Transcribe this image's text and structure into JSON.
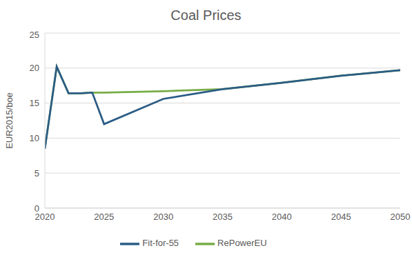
{
  "chart_data": {
    "type": "line",
    "title": "Coal Prices",
    "y_label": "EUR2015/boe",
    "x": [
      2020,
      2021,
      2022,
      2023,
      2024,
      2025,
      2030,
      2035,
      2040,
      2045,
      2050
    ],
    "series": [
      {
        "name": "RePowerEU",
        "color": "#77ac45",
        "values": [
          8.5,
          20.2,
          16.4,
          16.4,
          16.5,
          16.5,
          16.7,
          17.0,
          17.9,
          18.9,
          19.7
        ]
      },
      {
        "name": "Fit-for-55",
        "color": "#2b5c85",
        "values": [
          8.5,
          20.2,
          16.4,
          16.4,
          16.5,
          12.0,
          15.6,
          17.0,
          17.9,
          18.9,
          19.7
        ]
      }
    ],
    "xlim": [
      2020,
      2050
    ],
    "xticks": [
      2020,
      2025,
      2030,
      2035,
      2040,
      2045,
      2050
    ],
    "ylim": [
      0,
      25
    ],
    "yticks": [
      0,
      5,
      10,
      15,
      20,
      25
    ],
    "grid": true,
    "legend": "bottom"
  }
}
